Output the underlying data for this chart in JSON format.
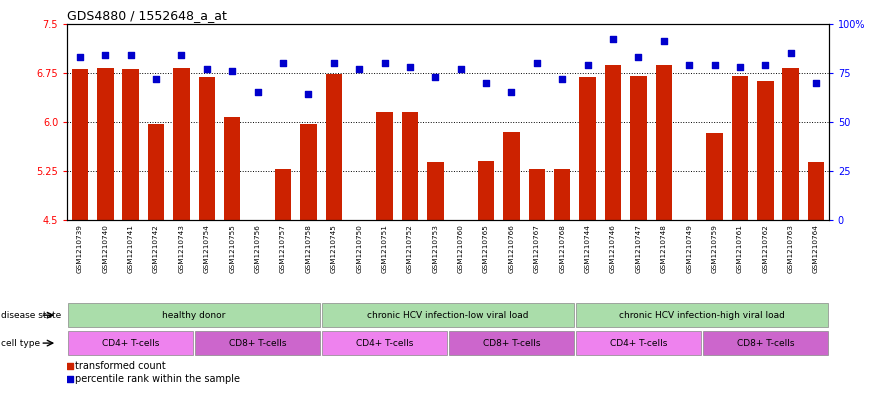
{
  "title": "GDS4880 / 1552648_a_at",
  "samples": [
    "GSM1210739",
    "GSM1210740",
    "GSM1210741",
    "GSM1210742",
    "GSM1210743",
    "GSM1210754",
    "GSM1210755",
    "GSM1210756",
    "GSM1210757",
    "GSM1210758",
    "GSM1210745",
    "GSM1210750",
    "GSM1210751",
    "GSM1210752",
    "GSM1210753",
    "GSM1210760",
    "GSM1210765",
    "GSM1210766",
    "GSM1210767",
    "GSM1210768",
    "GSM1210744",
    "GSM1210746",
    "GSM1210747",
    "GSM1210748",
    "GSM1210749",
    "GSM1210759",
    "GSM1210761",
    "GSM1210762",
    "GSM1210763",
    "GSM1210764"
  ],
  "bar_values": [
    6.8,
    6.82,
    6.8,
    5.96,
    6.82,
    6.68,
    6.07,
    4.5,
    5.28,
    5.96,
    6.73,
    4.5,
    6.15,
    6.15,
    5.38,
    4.5,
    5.4,
    5.85,
    5.28,
    5.28,
    6.68,
    6.87,
    6.7,
    6.87,
    4.5,
    5.83,
    6.7,
    6.63,
    6.82,
    5.38
  ],
  "percentile_values": [
    83,
    84,
    84,
    72,
    84,
    77,
    76,
    65,
    80,
    64,
    80,
    77,
    80,
    78,
    73,
    77,
    70,
    65,
    80,
    72,
    79,
    92,
    83,
    91,
    79,
    79,
    78,
    79,
    85,
    70
  ],
  "ylim_left": [
    4.5,
    7.5
  ],
  "ylim_right": [
    0,
    100
  ],
  "yticks_left": [
    4.5,
    5.25,
    6.0,
    6.75,
    7.5
  ],
  "yticks_right": [
    0,
    25,
    50,
    75,
    100
  ],
  "hlines": [
    5.25,
    6.0,
    6.75
  ],
  "bar_color": "#CC2200",
  "dot_color": "#0000CC",
  "disease_states": [
    {
      "label": "healthy donor",
      "start": 0,
      "end": 10
    },
    {
      "label": "chronic HCV infection-low viral load",
      "start": 10,
      "end": 20
    },
    {
      "label": "chronic HCV infection-high viral load",
      "start": 20,
      "end": 30
    }
  ],
  "cell_types": [
    {
      "label": "CD4+ T-cells",
      "start": 0,
      "end": 5,
      "color": "#EE82EE"
    },
    {
      "label": "CD8+ T-cells",
      "start": 5,
      "end": 10,
      "color": "#CC66CC"
    },
    {
      "label": "CD4+ T-cells",
      "start": 10,
      "end": 15,
      "color": "#EE82EE"
    },
    {
      "label": "CD8+ T-cells",
      "start": 15,
      "end": 20,
      "color": "#CC66CC"
    },
    {
      "label": "CD4+ T-cells",
      "start": 20,
      "end": 25,
      "color": "#EE82EE"
    },
    {
      "label": "CD8+ T-cells",
      "start": 25,
      "end": 30,
      "color": "#CC66CC"
    }
  ],
  "ds_color": "#AADDAA",
  "bg_color": "#E8E8E8"
}
